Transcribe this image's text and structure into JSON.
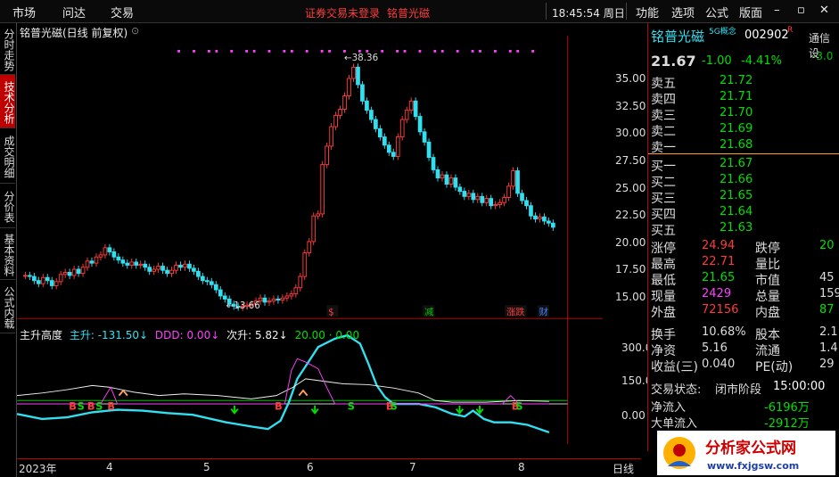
{
  "topbar": {
    "menu_market": "市场",
    "menu_wenda": "问达",
    "menu_trade": "交易",
    "login_status": "证券交易未登录",
    "stock_name": "铭普光磁",
    "time_week": "18:45:54 周日",
    "menu_function": "功能",
    "menu_options": "选项",
    "menu_formula": "公式",
    "menu_layout": "版面"
  },
  "sidetabs": [
    {
      "label": "分时走势",
      "active": false
    },
    {
      "label": "技术分析",
      "active": true
    },
    {
      "label": "成交明细",
      "active": false
    },
    {
      "label": "分价表",
      "active": false
    },
    {
      "label": "基本资料",
      "active": false
    },
    {
      "label": "公式内载",
      "active": false
    }
  ],
  "main_chart": {
    "header": "铭普光磁(日线 前复权)",
    "high_label": "38.36",
    "low_label": "13.66",
    "y_ticks": [
      "35.00",
      "32.50",
      "30.00",
      "27.50",
      "25.00",
      "22.50",
      "20.00",
      "17.50",
      "15.00"
    ],
    "event_markers": [
      {
        "text": "$",
        "color": "#ff3c3c"
      },
      {
        "text": "减",
        "color": "#00c000"
      },
      {
        "text": "涨跌",
        "color": "#ff3c3c"
      },
      {
        "text": "财",
        "color": "#4080ff"
      }
    ]
  },
  "indicator": {
    "name": "主升高度",
    "zhusheng": "主升: -131.50↓",
    "ddd": "DDD: 0.00↓",
    "cisheng": "次升: 5.82↓",
    "level": "20.00 · 0.00",
    "y_ticks": [
      "300.0",
      "150.0",
      "0.00"
    ],
    "marks": [
      "B",
      "S",
      "B",
      "S",
      "B",
      "B",
      "S",
      "B",
      "S",
      "B",
      "S"
    ]
  },
  "xaxis": {
    "labels": [
      "2023年",
      "4",
      "5",
      "6",
      "7",
      "8"
    ],
    "period": "日线"
  },
  "quote": {
    "name": "铭普光磁",
    "concept": "5G概念",
    "code": "002902",
    "code_flag": "R",
    "tab": "通信设",
    "tab_change": "-3.0",
    "price": "21.67",
    "change": "-1.00",
    "change_pct": "-4.41%",
    "asks": [
      {
        "label": "卖五",
        "price": "21.72"
      },
      {
        "label": "卖四",
        "price": "21.71"
      },
      {
        "label": "卖三",
        "price": "21.70"
      },
      {
        "label": "卖二",
        "price": "21.69"
      },
      {
        "label": "卖一",
        "price": "21.68"
      }
    ],
    "bids": [
      {
        "label": "买一",
        "price": "21.67"
      },
      {
        "label": "买二",
        "price": "21.66"
      },
      {
        "label": "买三",
        "price": "21.65"
      },
      {
        "label": "买四",
        "price": "21.64"
      },
      {
        "label": "买五",
        "price": "21.63"
      }
    ],
    "stats": [
      {
        "l1": "涨停",
        "v1": "24.94",
        "c1": "#ff3c3c",
        "l2": "跌停",
        "v2": "20",
        "c2": "#00e000"
      },
      {
        "l1": "最高",
        "v1": "22.71",
        "c1": "#ff3c3c",
        "l2": "量比",
        "v2": "",
        "c2": "#ddd"
      },
      {
        "l1": "最低",
        "v1": "21.65",
        "c1": "#00e000",
        "l2": "市值",
        "v2": "45",
        "c2": "#ddd"
      },
      {
        "l1": "现量",
        "v1": "2429",
        "c1": "#ff40ff",
        "l2": "总量",
        "v2": "159",
        "c2": "#ddd"
      },
      {
        "l1": "外盘",
        "v1": "72156",
        "c1": "#ff3c3c",
        "l2": "内盘",
        "v2": "87",
        "c2": "#00e000"
      }
    ],
    "stats2": [
      {
        "l1": "换手",
        "v1": "10.68%",
        "l2": "股本",
        "v2": "2.1"
      },
      {
        "l1": "净资",
        "v1": "5.16",
        "l2": "流通",
        "v2": "1.4"
      },
      {
        "l1": "收益(三)",
        "v1": "0.040",
        "l2": "PE(动)",
        "v2": "29"
      }
    ],
    "trade_state_label": "交易状态:",
    "trade_state": "闭市阶段",
    "trade_time": "15:00:00",
    "net_inflow_label": "净流入",
    "net_inflow": "-6196万",
    "big_inflow_label": "大单流入",
    "big_inflow": "-2912万"
  },
  "logo": {
    "title": "分析家公式网",
    "url": "www.fxjgsw.com"
  }
}
